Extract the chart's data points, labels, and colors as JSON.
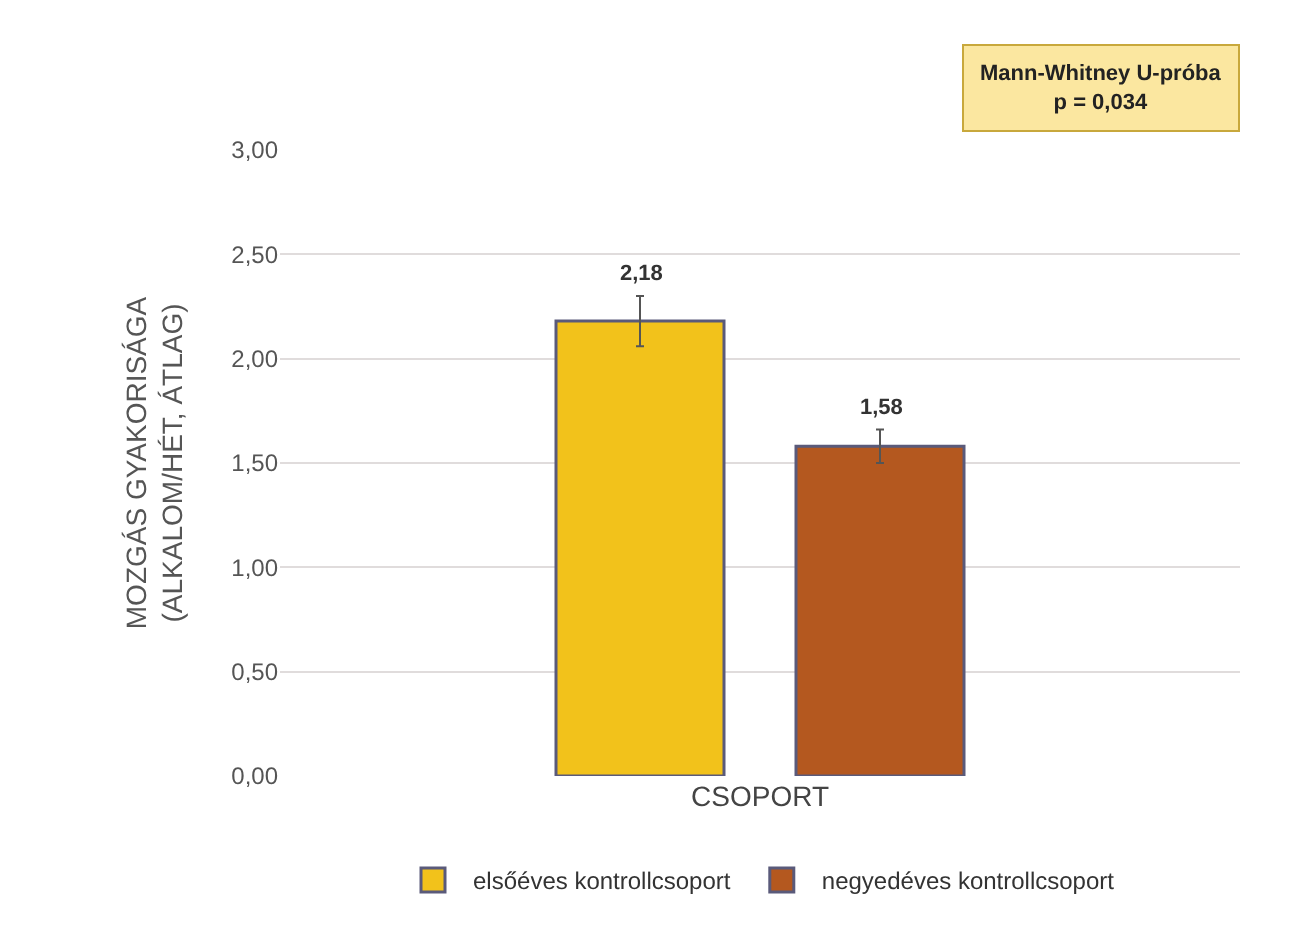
{
  "chart_data": {
    "type": "bar",
    "ylabel": "MOZGÁS GYAKORISÁGA\n(ALKALOM/HÉT, ÁTLAG)",
    "categories": [
      "CSOPORT"
    ],
    "series": [
      {
        "name": "elsőéves kontrollcsoport",
        "color": "#f2c21b",
        "values": [
          2.18
        ],
        "errors": [
          0.12
        ],
        "value_labels": [
          "2,18"
        ]
      },
      {
        "name": "negyedéves kontrollcsoport",
        "color": "#b4581f",
        "values": [
          1.58
        ],
        "errors": [
          0.08
        ],
        "value_labels": [
          "1,58"
        ]
      }
    ],
    "ylim": [
      0,
      3
    ],
    "yticks": [
      {
        "value": 0,
        "label": "0,00"
      },
      {
        "value": 0.5,
        "label": "0,50"
      },
      {
        "value": 1,
        "label": "1,00"
      },
      {
        "value": 1.5,
        "label": "1,50"
      },
      {
        "value": 2,
        "label": "2,00"
      },
      {
        "value": 2.5,
        "label": "2,50"
      },
      {
        "value": 3,
        "label": "3,00"
      }
    ],
    "grid": "y",
    "legend": "bottom",
    "annotations": [
      "Mann-Whitney U-próba\np = 0,034"
    ]
  }
}
